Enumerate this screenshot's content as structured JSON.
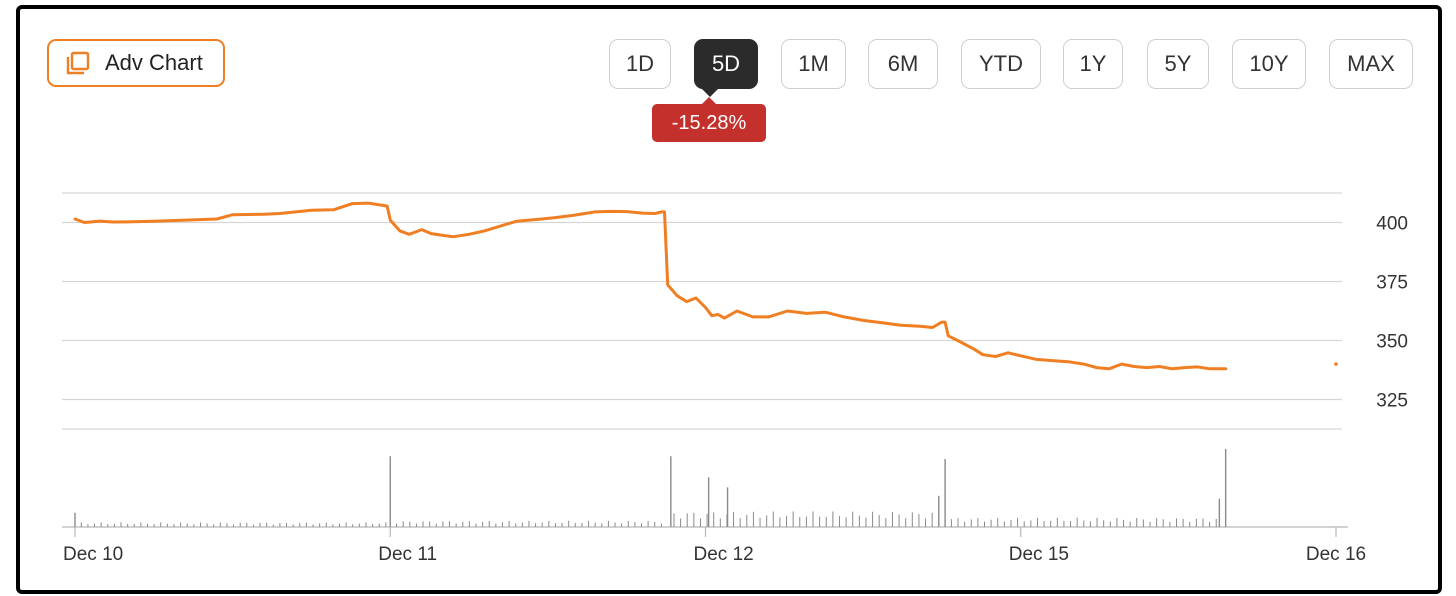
{
  "toolbar": {
    "adv_chart_label": "Adv Chart",
    "ranges": [
      "1D",
      "5D",
      "1M",
      "6M",
      "YTD",
      "1Y",
      "5Y",
      "10Y",
      "MAX"
    ],
    "active_range": "5D",
    "change_badge": "-15.28%"
  },
  "colors": {
    "accent": "#f07e22",
    "negative": "#c4302c",
    "active": "#2b2b2b",
    "volume": "#8a8a8a"
  },
  "chart_data": {
    "type": "line",
    "title": "",
    "xlabel": "",
    "ylabel": "",
    "ylim": [
      312.5,
      412.5
    ],
    "yticks": [
      400,
      375,
      350,
      325
    ],
    "grid": true,
    "x_range": [
      0,
      4
    ],
    "x_ticks": [
      {
        "label": "Dec 10",
        "x": 0
      },
      {
        "label": "Dec 11",
        "x": 1
      },
      {
        "label": "Dec 12",
        "x": 2
      },
      {
        "label": "Dec 15",
        "x": 3
      },
      {
        "label": "Dec 16",
        "x": 4
      }
    ],
    "price": [
      [
        0.0,
        401.5
      ],
      [
        0.03,
        400.0
      ],
      [
        0.08,
        400.6
      ],
      [
        0.12,
        400.2
      ],
      [
        0.18,
        400.3
      ],
      [
        0.25,
        400.5
      ],
      [
        0.35,
        401.0
      ],
      [
        0.45,
        401.5
      ],
      [
        0.5,
        403.3
      ],
      [
        0.6,
        403.5
      ],
      [
        0.65,
        403.8
      ],
      [
        0.75,
        405.2
      ],
      [
        0.82,
        405.4
      ],
      [
        0.88,
        408.0
      ],
      [
        0.93,
        408.2
      ],
      [
        0.99,
        407.0
      ],
      [
        1.0,
        401.0
      ],
      [
        1.03,
        396.5
      ],
      [
        1.06,
        395.0
      ],
      [
        1.1,
        397.0
      ],
      [
        1.13,
        395.3
      ],
      [
        1.17,
        394.5
      ],
      [
        1.2,
        394.0
      ],
      [
        1.25,
        395.0
      ],
      [
        1.3,
        396.5
      ],
      [
        1.35,
        398.5
      ],
      [
        1.4,
        400.5
      ],
      [
        1.48,
        401.5
      ],
      [
        1.52,
        402.0
      ],
      [
        1.58,
        403.0
      ],
      [
        1.65,
        404.5
      ],
      [
        1.7,
        404.7
      ],
      [
        1.75,
        404.6
      ],
      [
        1.8,
        404.0
      ],
      [
        1.84,
        403.8
      ],
      [
        1.86,
        404.5
      ],
      [
        1.87,
        404.5
      ],
      [
        1.88,
        373.6
      ],
      [
        1.91,
        369.0
      ],
      [
        1.94,
        366.5
      ],
      [
        1.97,
        368.0
      ],
      [
        2.0,
        364.0
      ],
      [
        2.02,
        360.5
      ],
      [
        2.04,
        361.0
      ],
      [
        2.06,
        359.5
      ],
      [
        2.1,
        362.5
      ],
      [
        2.15,
        360.0
      ],
      [
        2.2,
        360.0
      ],
      [
        2.26,
        362.5
      ],
      [
        2.32,
        361.5
      ],
      [
        2.38,
        362.0
      ],
      [
        2.44,
        360.0
      ],
      [
        2.5,
        358.5
      ],
      [
        2.56,
        357.5
      ],
      [
        2.62,
        356.5
      ],
      [
        2.68,
        356.0
      ],
      [
        2.72,
        355.5
      ],
      [
        2.75,
        357.8
      ],
      [
        2.76,
        357.8
      ],
      [
        2.77,
        352.0
      ],
      [
        2.8,
        350.0
      ],
      [
        2.85,
        346.5
      ],
      [
        2.88,
        344.0
      ],
      [
        2.92,
        343.2
      ],
      [
        2.96,
        344.8
      ],
      [
        3.0,
        343.5
      ],
      [
        3.05,
        342.0
      ],
      [
        3.1,
        341.5
      ],
      [
        3.15,
        341.0
      ],
      [
        3.2,
        340.0
      ],
      [
        3.24,
        338.5
      ],
      [
        3.28,
        338.0
      ],
      [
        3.32,
        340.0
      ],
      [
        3.36,
        339.0
      ],
      [
        3.4,
        338.5
      ],
      [
        3.44,
        339.0
      ],
      [
        3.48,
        338.0
      ],
      [
        3.52,
        338.5
      ],
      [
        3.56,
        338.8
      ],
      [
        3.6,
        338.0
      ],
      [
        3.65,
        338.0
      ]
    ],
    "last_close_point": [
      4.0,
      340.0
    ],
    "volume": {
      "baseline": true,
      "spikes": [
        [
          0.0,
          10
        ],
        [
          1.0,
          50
        ],
        [
          1.89,
          50
        ],
        [
          2.01,
          35
        ],
        [
          2.07,
          28
        ],
        [
          2.76,
          48
        ],
        [
          2.74,
          22
        ],
        [
          3.65,
          55
        ],
        [
          3.63,
          20
        ]
      ],
      "segments": [
        {
          "from": 0.02,
          "to": 0.99,
          "level": 3
        },
        {
          "from": 1.02,
          "to": 1.86,
          "level": 4
        },
        {
          "from": 1.9,
          "to": 2.72,
          "level": 10
        },
        {
          "from": 2.78,
          "to": 3.62,
          "level": 6
        }
      ]
    }
  }
}
